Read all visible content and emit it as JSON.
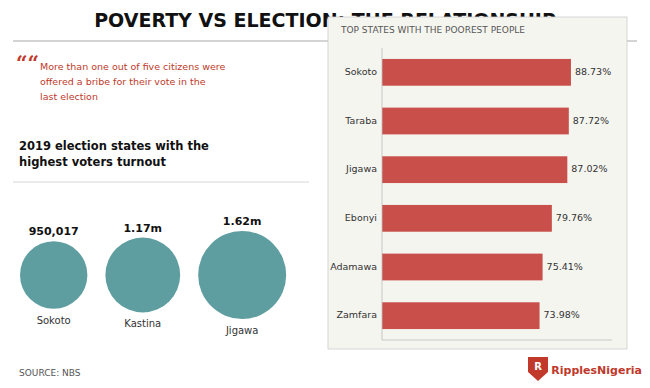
{
  "title": "POVERTY VS ELECTION: THE RELATIONSHIP",
  "color": "#c0392b",
  "annotations": [
    "““",
    "More than one out of five citizens were\noffered a bribe for their vote in the\nlast election",
    "SOURCE: NBS",
    "R",
    "RipplesNigeria"
  ],
  "chart_data": [
    {
      "type": "bar",
      "orientation": "horizontal",
      "title": "TOP STATES WITH THE POOREST PEOPLE",
      "categories": [
        "Sokoto",
        "Taraba",
        "Jigawa",
        "Ebonyi",
        "Adamawa",
        "Zamfara"
      ],
      "values": [
        88.73,
        87.72,
        87.02,
        79.76,
        75.41,
        73.98
      ],
      "value_labels": [
        "88.73%",
        "87.72%",
        "87.02%",
        "79.76%",
        "75.41%",
        "73.98%"
      ],
      "color": "#c9504a",
      "xlim": [
        0,
        108
      ],
      "tick_labels": "y",
      "data_labels": true,
      "grid": false
    },
    {
      "type": "bubble",
      "title": "2019 election states with the\nhighest voters turnout",
      "categories": [
        "Sokoto",
        "Kastina",
        "Jigawa"
      ],
      "values": [
        950017,
        1170000,
        1620000
      ],
      "value_labels": [
        "950,017",
        "1.17m",
        "1.62m"
      ],
      "color": "#5f9ea0",
      "data_labels": true
    }
  ]
}
